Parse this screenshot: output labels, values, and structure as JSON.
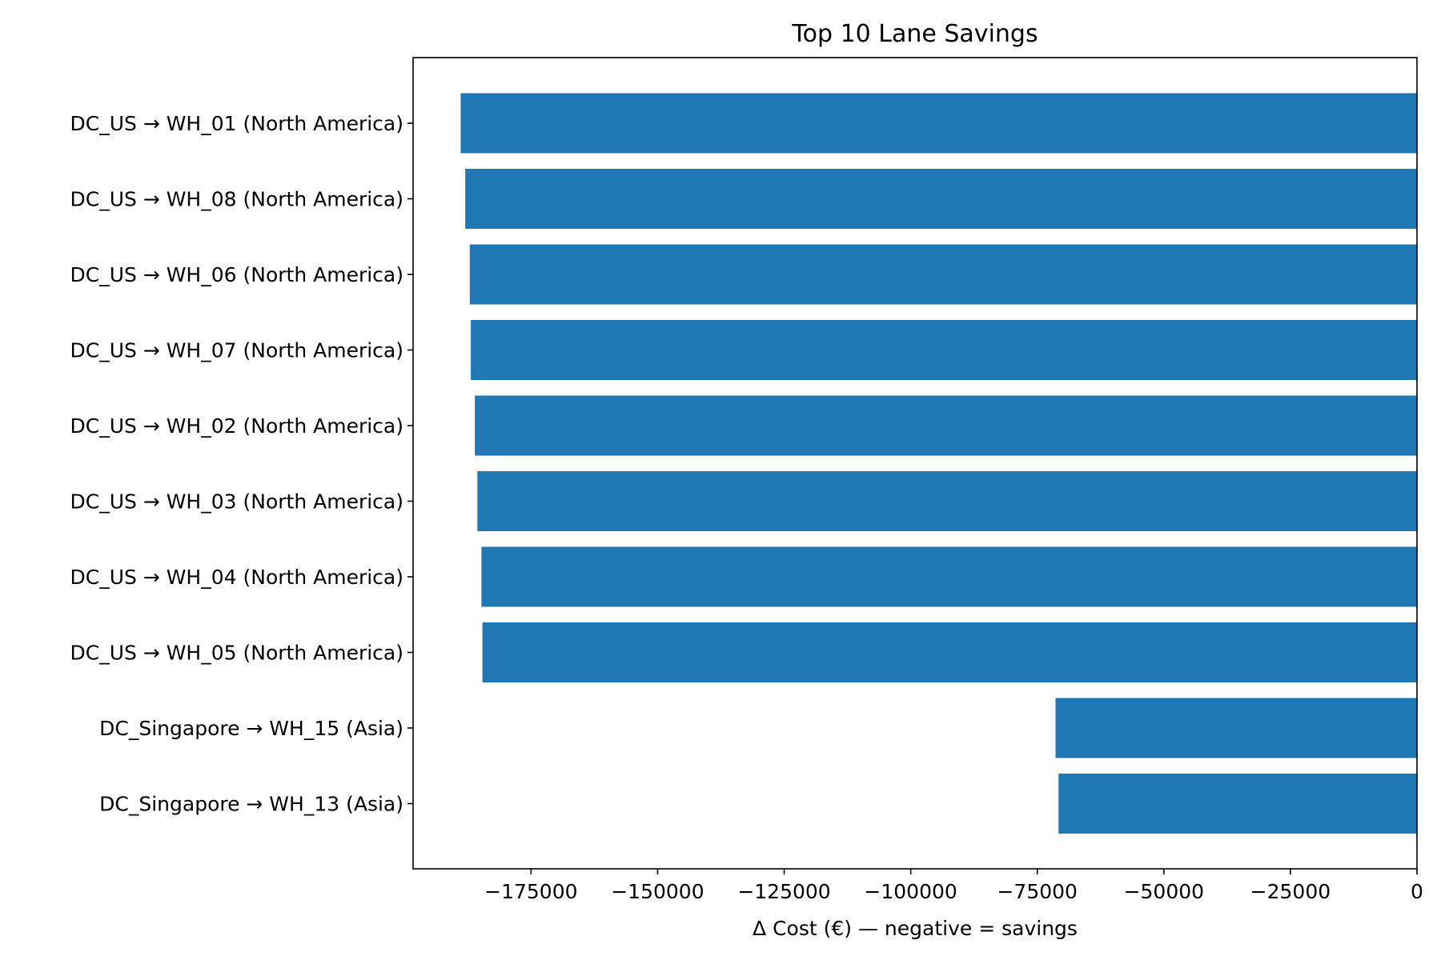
{
  "chart_data": {
    "type": "bar",
    "orientation": "horizontal",
    "title": "Top 10 Lane Savings",
    "xlabel": "Δ Cost (€) — negative = savings",
    "ylabel": "",
    "categories": [
      "DC_US → WH_01 (North America)",
      "DC_US → WH_08 (North America)",
      "DC_US → WH_06 (North America)",
      "DC_US → WH_07 (North America)",
      "DC_US → WH_02 (North America)",
      "DC_US → WH_03 (North America)",
      "DC_US → WH_04 (North America)",
      "DC_US → WH_05 (North America)",
      "DC_Singapore → WH_15 (Asia)",
      "DC_Singapore → WH_13 (Asia)"
    ],
    "values": [
      -188900,
      -188000,
      -187100,
      -186900,
      -186100,
      -185600,
      -184800,
      -184600,
      -71400,
      -70800
    ],
    "xlim": [
      -198300,
      0
    ],
    "xticks": [
      -175000,
      -150000,
      -125000,
      -100000,
      -75000,
      -50000,
      -25000,
      0
    ],
    "xtick_labels": [
      "−175000",
      "−150000",
      "−125000",
      "−100000",
      "−75000",
      "−50000",
      "−25000",
      "0"
    ],
    "bar_color": "#1f77b4",
    "grid": false,
    "legend": "none"
  }
}
